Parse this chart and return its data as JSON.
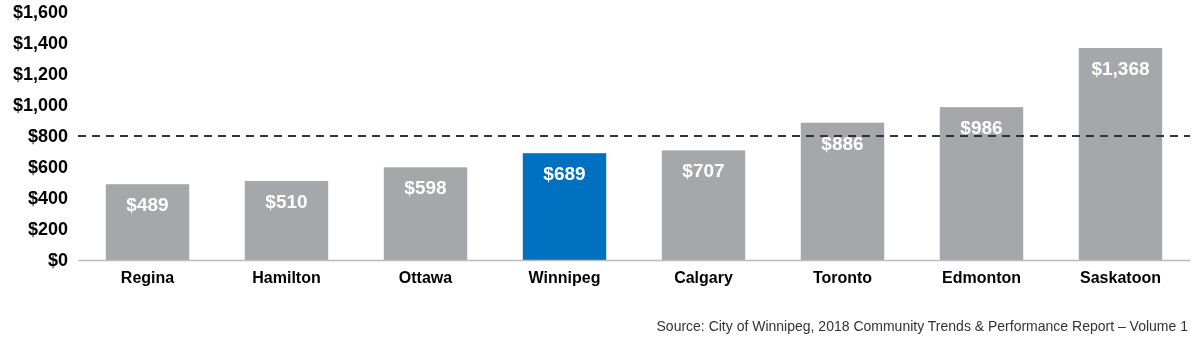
{
  "chart_data": {
    "type": "bar",
    "categories": [
      "Regina",
      "Hamilton",
      "Ottawa",
      "Winnipeg",
      "Calgary",
      "Toronto",
      "Edmonton",
      "Saskatoon"
    ],
    "values": [
      489,
      510,
      598,
      689,
      707,
      886,
      986,
      1368
    ],
    "colors": [
      "#a6a7aa",
      "#a6a7aa",
      "#a6a7aa",
      "#0070c0",
      "#a6a7aa",
      "#a6a7aa",
      "#a6a7aa",
      "#a6a7aa"
    ],
    "value_labels": [
      "$489",
      "$510",
      "$598",
      "$689",
      "$707",
      "$886",
      "$986",
      "$1,368"
    ],
    "ylim": [
      0,
      1600
    ],
    "yticks": [
      {
        "value": 0,
        "label": "$0"
      },
      {
        "value": 200,
        "label": "$200"
      },
      {
        "value": 400,
        "label": "$400"
      },
      {
        "value": 600,
        "label": "$600"
      },
      {
        "value": 800,
        "label": "$800"
      },
      {
        "value": 1000,
        "label": "$1,000"
      },
      {
        "value": 1200,
        "label": "$1,200"
      },
      {
        "value": 1400,
        "label": "$1,400"
      },
      {
        "value": 1600,
        "label": "$1,600"
      }
    ],
    "grid": false,
    "ref_lines": [
      {
        "axis": "y",
        "value": 800,
        "color": "#333333",
        "line_style": "dashed"
      }
    ],
    "annotations": [
      "Source: City of Winnipeg, 2018 Community Trends & Performance Report – Volume 1"
    ]
  }
}
